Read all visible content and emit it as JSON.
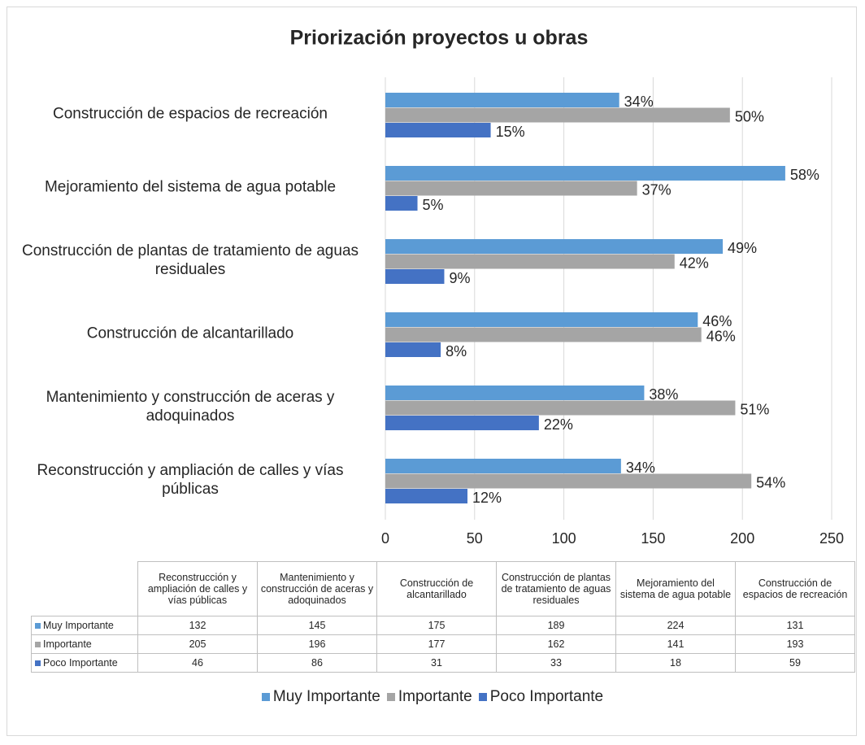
{
  "chart_data": {
    "type": "bar",
    "orientation": "horizontal",
    "title": "Priorización proyectos u obras",
    "categories": [
      "Reconstrucción y ampliación de calles y vías públicas",
      "Mantenimiento y construcción de aceras y adoquinados",
      "Construcción de alcantarillado",
      "Construcción de plantas de tratamiento de aguas residuales",
      "Mejoramiento del sistema de agua potable",
      "Construcción de espacios de recreación"
    ],
    "series": [
      {
        "name": "Muy Importante",
        "color": "#5b9bd5",
        "values": [
          132,
          145,
          175,
          189,
          224,
          131
        ],
        "percent_labels": [
          "34%",
          "38%",
          "46%",
          "49%",
          "58%",
          "34%"
        ]
      },
      {
        "name": "Importante",
        "color": "#a5a5a5",
        "values": [
          205,
          196,
          177,
          162,
          141,
          193
        ],
        "percent_labels": [
          "54%",
          "51%",
          "46%",
          "42%",
          "37%",
          "50%"
        ]
      },
      {
        "name": "Poco Importante",
        "color": "#4472c4",
        "values": [
          46,
          86,
          31,
          33,
          18,
          59
        ],
        "percent_labels": [
          "12%",
          "22%",
          "8%",
          "9%",
          "5%",
          "15%"
        ]
      }
    ],
    "xlim": [
      0,
      250
    ],
    "xticks": [
      0,
      50,
      100,
      150,
      200,
      250
    ],
    "grid": true,
    "legend": "bottom",
    "data_table": true
  }
}
